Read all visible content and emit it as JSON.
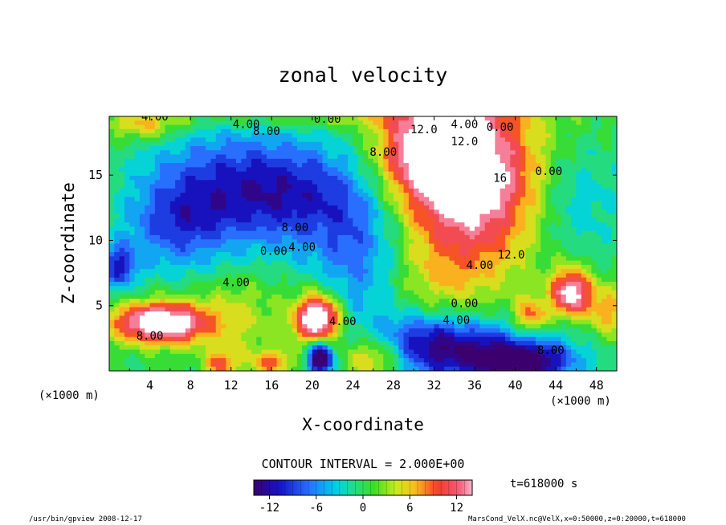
{
  "chart_data": {
    "type": "heatmap",
    "title": "zonal velocity",
    "xlabel": "X-coordinate",
    "ylabel": "Z-coordinate",
    "x_unit_left": "(×1000 m)",
    "x_unit_right": "(×1000 m)",
    "xlim": [
      0,
      50
    ],
    "ylim": [
      0,
      19.5
    ],
    "x_ticks": [
      4,
      8,
      12,
      16,
      20,
      24,
      28,
      32,
      36,
      40,
      44,
      48
    ],
    "y_ticks": [
      5,
      10,
      15
    ],
    "contour_interval_label": "CONTOUR INTERVAL = 2.000E+00",
    "time_label": "t=618000 s",
    "colorbar": {
      "range": [
        -14,
        14
      ],
      "ticks": [
        -12,
        -6,
        0,
        6,
        12
      ]
    },
    "contour_labels": [
      {
        "text": "4.00",
        "x": 4.5,
        "y": 19.2
      },
      {
        "text": "4.00",
        "x": 13.5,
        "y": 18.6
      },
      {
        "text": "8.00",
        "x": 15.5,
        "y": 18.1
      },
      {
        "text": "0.00",
        "x": 21.5,
        "y": 19.0
      },
      {
        "text": "12.0",
        "x": 31.0,
        "y": 18.2
      },
      {
        "text": "4.00",
        "x": 35.0,
        "y": 18.6
      },
      {
        "text": "0.00",
        "x": 38.5,
        "y": 18.4
      },
      {
        "text": "8.00",
        "x": 27.0,
        "y": 16.5
      },
      {
        "text": "12.0",
        "x": 35.0,
        "y": 17.3
      },
      {
        "text": "16",
        "x": 38.5,
        "y": 14.5
      },
      {
        "text": "0.00",
        "x": 43.3,
        "y": 15.0
      },
      {
        "text": "8.00",
        "x": 18.3,
        "y": 10.7
      },
      {
        "text": "4.00",
        "x": 19.0,
        "y": 9.2
      },
      {
        "text": "0.00",
        "x": 16.2,
        "y": 8.9
      },
      {
        "text": "4.00",
        "x": 12.5,
        "y": 6.5
      },
      {
        "text": "4.00",
        "x": 36.5,
        "y": 7.8
      },
      {
        "text": "12.0",
        "x": 39.6,
        "y": 8.6
      },
      {
        "text": "8.00",
        "x": 4.0,
        "y": 2.4
      },
      {
        "text": "4.00",
        "x": 23.0,
        "y": 3.5
      },
      {
        "text": "0.00",
        "x": 35.0,
        "y": 4.9
      },
      {
        "text": "4.00",
        "x": 34.2,
        "y": 3.6
      },
      {
        "text": "8.00",
        "x": 43.5,
        "y": 1.3
      }
    ],
    "field_features": [
      {
        "kind": "max",
        "x": 34.0,
        "y": 16.5,
        "sx": 5.0,
        "sy": 3.5,
        "amp": 16
      },
      {
        "kind": "max",
        "x": 36.0,
        "y": 12.0,
        "sx": 4.5,
        "sy": 4.0,
        "amp": 9
      },
      {
        "kind": "max",
        "x": 30.5,
        "y": 17.0,
        "sx": 2.5,
        "sy": 1.8,
        "amp": 6
      },
      {
        "kind": "min",
        "x": 18.0,
        "y": 13.5,
        "sx": 5.5,
        "sy": 3.0,
        "amp": -10
      },
      {
        "kind": "min",
        "x": 10.0,
        "y": 14.5,
        "sx": 5.0,
        "sy": 3.0,
        "amp": -6
      },
      {
        "kind": "min",
        "x": 6.5,
        "y": 11.0,
        "sx": 3.5,
        "sy": 2.5,
        "amp": -7
      },
      {
        "kind": "min",
        "x": 1.0,
        "y": 8.0,
        "sx": 1.2,
        "sy": 1.2,
        "amp": -10
      },
      {
        "kind": "min",
        "x": 24.5,
        "y": 9.0,
        "sx": 3.0,
        "sy": 4.0,
        "amp": -6
      },
      {
        "kind": "max",
        "x": 5.0,
        "y": 3.7,
        "sx": 3.2,
        "sy": 1.1,
        "amp": 19
      },
      {
        "kind": "max",
        "x": 20.5,
        "y": 4.0,
        "sx": 1.5,
        "sy": 1.3,
        "amp": 20
      },
      {
        "kind": "max",
        "x": 12.5,
        "y": 4.0,
        "sx": 3.5,
        "sy": 2.5,
        "amp": 4
      },
      {
        "kind": "max",
        "x": 26.0,
        "y": 1.0,
        "sx": 2.2,
        "sy": 1.2,
        "amp": 9
      },
      {
        "kind": "max",
        "x": 11.0,
        "y": 0.5,
        "sx": 1.0,
        "sy": 0.7,
        "amp": 9
      },
      {
        "kind": "max",
        "x": 16.0,
        "y": 0.6,
        "sx": 1.5,
        "sy": 0.7,
        "amp": 8
      },
      {
        "kind": "max",
        "x": 45.5,
        "y": 6.0,
        "sx": 1.4,
        "sy": 1.3,
        "amp": 16
      },
      {
        "kind": "max",
        "x": 41.5,
        "y": 4.2,
        "sx": 1.2,
        "sy": 1.0,
        "amp": 9
      },
      {
        "kind": "max",
        "x": 49.0,
        "y": 4.5,
        "sx": 1.3,
        "sy": 1.5,
        "amp": 7
      },
      {
        "kind": "min",
        "x": 20.8,
        "y": 1.0,
        "sx": 0.9,
        "sy": 0.9,
        "amp": -18
      },
      {
        "kind": "min",
        "x": 36.5,
        "y": 1.3,
        "sx": 6.0,
        "sy": 1.6,
        "amp": -12
      },
      {
        "kind": "min",
        "x": 41.0,
        "y": 0.6,
        "sx": 3.0,
        "sy": 0.9,
        "amp": -10
      },
      {
        "kind": "min",
        "x": 31.0,
        "y": 2.5,
        "sx": 3.5,
        "sy": 1.5,
        "amp": -6
      },
      {
        "kind": "max",
        "x": 3.5,
        "y": 18.8,
        "sx": 2.5,
        "sy": 0.8,
        "amp": 6
      },
      {
        "kind": "max",
        "x": 22.0,
        "y": 19.2,
        "sx": 15.0,
        "sy": 0.5,
        "amp": 3
      },
      {
        "kind": "min",
        "x": 46.0,
        "y": 13.0,
        "sx": 3.0,
        "sy": 3.0,
        "amp": -4
      },
      {
        "kind": "max",
        "x": 32.5,
        "y": 7.0,
        "sx": 3.0,
        "sy": 2.0,
        "amp": 3
      }
    ]
  },
  "footer": {
    "left": "/usr/bin/gpview  2008-12-17",
    "right": "MarsCond_VelX.nc@VelX,x=0:50000,z=0:20000,t=618000"
  }
}
